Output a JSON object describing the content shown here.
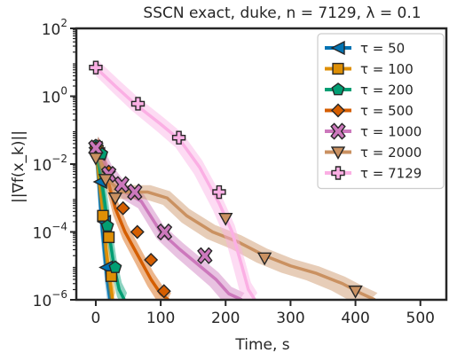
{
  "chart_data": {
    "type": "line",
    "title": "SSCN exact, duke, n = 7129, λ = 0.1",
    "xlabel": "Time, s",
    "ylabel": "||∇f(x_k)||",
    "xlim": [
      -30,
      540
    ],
    "ylim_log10": [
      -6,
      2
    ],
    "yscale": "log",
    "x_ticks": [
      0,
      100,
      200,
      300,
      400,
      500
    ],
    "x_tick_labels": [
      "0",
      "100",
      "200",
      "300",
      "400",
      "500"
    ],
    "y_ticks_log10": [
      -6,
      -4,
      -2,
      0,
      2
    ],
    "legend_position": "top-right",
    "series": [
      {
        "name": "τ = 50",
        "color": "#0173b2",
        "marker": "triangle-left",
        "x": [
          0,
          4,
          9,
          13,
          17,
          22
        ],
        "y": [
          0.04,
          0.004,
          0.0002,
          3e-05,
          5e-06,
          1e-06
        ],
        "markers_x": [
          0,
          4,
          7,
          13,
          16
        ],
        "markers_y": [
          0.03,
          0.02,
          0.003,
          0.0002,
          9e-06
        ]
      },
      {
        "name": "τ = 100",
        "color": "#de8f05",
        "marker": "square",
        "x": [
          0,
          5,
          11,
          16,
          21,
          26
        ],
        "y": [
          0.04,
          0.004,
          0.0004,
          3e-05,
          5e-06,
          1e-06
        ],
        "markers_x": [
          0,
          3,
          11,
          20,
          24
        ],
        "markers_y": [
          0.03,
          0.025,
          0.0003,
          7e-05,
          5e-06
        ]
      },
      {
        "name": "τ = 200",
        "color": "#029e73",
        "marker": "pentagon",
        "x": [
          0,
          6,
          13,
          20,
          28,
          36,
          44
        ],
        "y": [
          0.04,
          0.008,
          0.001,
          0.0001,
          1e-05,
          2e-06,
          1e-06
        ],
        "markers_x": [
          0,
          9,
          18,
          30
        ],
        "markers_y": [
          0.035,
          0.02,
          0.00015,
          9e-06
        ]
      },
      {
        "name": "τ = 500",
        "color": "#d55e00",
        "marker": "diamond",
        "x": [
          0,
          15,
          30,
          45,
          65,
          85,
          100,
          112
        ],
        "y": [
          0.04,
          0.006,
          0.0005,
          0.0001,
          2e-05,
          4e-06,
          1.5e-06,
          1e-06
        ],
        "markers_x": [
          0,
          20,
          42,
          64,
          85,
          105
        ],
        "markers_y": [
          0.03,
          0.006,
          0.0005,
          0.0001,
          1.5e-05,
          1.8e-06
        ]
      },
      {
        "name": "τ = 1000",
        "color": "#cc78bc",
        "marker": "x-box",
        "x": [
          0,
          20,
          45,
          70,
          100,
          130,
          160,
          185,
          205,
          225
        ],
        "y": [
          0.04,
          0.006,
          0.0015,
          0.0008,
          0.0001,
          3e-05,
          1e-05,
          4e-06,
          1.5e-06,
          1e-06
        ],
        "markers_x": [
          0,
          20,
          40,
          60,
          106,
          168
        ],
        "markers_y": [
          0.03,
          0.005,
          0.0025,
          0.0015,
          0.0001,
          2e-05
        ]
      },
      {
        "name": "τ = 2000",
        "color": "#ca9161",
        "marker": "triangle-down",
        "x": [
          0,
          15,
          40,
          80,
          110,
          140,
          180,
          220,
          260,
          300,
          340,
          380,
          410,
          430
        ],
        "y": [
          0.04,
          0.004,
          0.0015,
          0.0015,
          0.001,
          0.0003,
          0.0001,
          5e-05,
          2e-05,
          1e-05,
          6e-06,
          3e-06,
          1.5e-06,
          1e-06
        ],
        "markers_x": [
          0,
          15,
          30,
          200,
          260,
          400
        ],
        "markers_y": [
          0.015,
          0.0035,
          0.001,
          0.00025,
          1.7e-05,
          1.8e-06
        ]
      },
      {
        "name": "τ = 7129",
        "color": "#fbafe4",
        "marker": "plus",
        "x": [
          0,
          30,
          60,
          100,
          130,
          160,
          190,
          210,
          225,
          235,
          245
        ],
        "y": [
          7,
          2,
          0.6,
          0.15,
          0.05,
          0.008,
          0.0007,
          0.0001,
          1e-05,
          2e-06,
          1e-06
        ],
        "markers_x": [
          0,
          65,
          128,
          190
        ],
        "markers_y": [
          7,
          0.6,
          0.06,
          0.0015
        ]
      }
    ]
  }
}
